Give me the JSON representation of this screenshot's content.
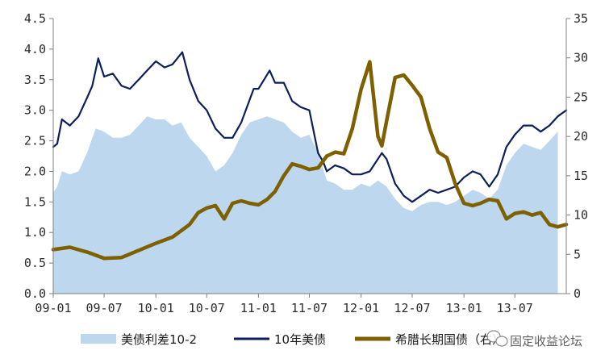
{
  "chart_data": {
    "type": "line",
    "title": "",
    "x_ticks": [
      "09-01",
      "09-07",
      "10-01",
      "10-07",
      "11-01",
      "11-07",
      "12-01",
      "12-07",
      "13-01",
      "13-07"
    ],
    "y_left": {
      "min": 0,
      "max": 4.5,
      "ticks": [
        "0.0",
        "0.5",
        "1.0",
        "1.5",
        "2.0",
        "2.5",
        "3.0",
        "3.5",
        "4.0",
        "4.5"
      ]
    },
    "y_right": {
      "min": 0,
      "max": 35,
      "ticks": [
        "0",
        "5",
        "10",
        "15",
        "20",
        "25",
        "30",
        "35"
      ]
    },
    "legend_position": "bottom",
    "grid": false,
    "series": [
      {
        "name": "美债利差10-2",
        "type": "area",
        "axis": "left",
        "color": "#bdd7ee",
        "x": [
          "2009-01-01",
          "2009-01-15",
          "2009-02-01",
          "2009-03-01",
          "2009-04-01",
          "2009-05-01",
          "2009-06-01",
          "2009-07-01",
          "2009-08-01",
          "2009-09-01",
          "2009-10-01",
          "2009-11-01",
          "2009-12-01",
          "2010-01-01",
          "2010-02-01",
          "2010-03-01",
          "2010-04-01",
          "2010-05-01",
          "2010-06-01",
          "2010-07-01",
          "2010-08-01",
          "2010-09-01",
          "2010-10-01",
          "2010-11-01",
          "2010-12-01",
          "2011-01-01",
          "2011-02-01",
          "2011-03-01",
          "2011-04-01",
          "2011-05-01",
          "2011-06-01",
          "2011-07-01",
          "2011-08-01",
          "2011-09-01",
          "2011-10-01",
          "2011-11-01",
          "2011-12-01",
          "2012-01-01",
          "2012-02-01",
          "2012-03-01",
          "2012-04-01",
          "2012-05-01",
          "2012-06-01",
          "2012-07-01",
          "2012-08-01",
          "2012-09-01",
          "2012-10-01",
          "2012-11-01",
          "2012-12-01",
          "2013-01-01",
          "2013-02-01",
          "2013-03-01",
          "2013-04-01",
          "2013-05-01",
          "2013-06-01",
          "2013-07-01",
          "2013-08-01",
          "2013-09-01",
          "2013-10-01",
          "2013-11-01",
          "2013-12-01"
        ],
        "values": [
          1.65,
          1.75,
          2.0,
          1.95,
          2.0,
          2.3,
          2.7,
          2.65,
          2.55,
          2.55,
          2.6,
          2.75,
          2.9,
          2.85,
          2.85,
          2.75,
          2.8,
          2.55,
          2.4,
          2.25,
          2.0,
          2.1,
          2.3,
          2.6,
          2.8,
          2.85,
          2.9,
          2.85,
          2.8,
          2.65,
          2.55,
          2.6,
          2.3,
          1.85,
          1.8,
          1.7,
          1.7,
          1.8,
          1.75,
          1.85,
          1.75,
          1.55,
          1.4,
          1.35,
          1.45,
          1.5,
          1.5,
          1.45,
          1.5,
          1.6,
          1.7,
          1.65,
          1.55,
          1.7,
          2.1,
          2.3,
          2.45,
          2.4,
          2.35,
          2.5,
          2.65
        ]
      },
      {
        "name": "10年美债",
        "type": "line",
        "axis": "left",
        "color": "#0c1f5c",
        "x": [
          "2009-01-01",
          "2009-01-15",
          "2009-02-01",
          "2009-03-01",
          "2009-04-01",
          "2009-05-01",
          "2009-05-20",
          "2009-06-10",
          "2009-07-01",
          "2009-08-01",
          "2009-09-01",
          "2009-10-01",
          "2009-11-01",
          "2009-12-01",
          "2010-01-01",
          "2010-02-01",
          "2010-03-01",
          "2010-04-05",
          "2010-05-01",
          "2010-06-01",
          "2010-07-01",
          "2010-08-01",
          "2010-09-01",
          "2010-10-01",
          "2010-11-01",
          "2010-12-15",
          "2011-01-01",
          "2011-02-10",
          "2011-03-01",
          "2011-04-01",
          "2011-05-01",
          "2011-06-01",
          "2011-07-01",
          "2011-08-01",
          "2011-08-20",
          "2011-09-01",
          "2011-10-01",
          "2011-11-01",
          "2011-12-01",
          "2012-01-01",
          "2012-02-01",
          "2012-03-15",
          "2012-04-01",
          "2012-05-01",
          "2012-06-01",
          "2012-07-01",
          "2012-08-01",
          "2012-09-01",
          "2012-10-01",
          "2012-11-01",
          "2012-12-01",
          "2013-01-01",
          "2013-02-01",
          "2013-03-01",
          "2013-04-01",
          "2013-05-01",
          "2013-06-01",
          "2013-07-01",
          "2013-08-01",
          "2013-09-01",
          "2013-10-01",
          "2013-11-01",
          "2013-12-01",
          "2013-12-31"
        ],
        "values": [
          2.4,
          2.45,
          2.85,
          2.75,
          2.9,
          3.2,
          3.4,
          3.85,
          3.55,
          3.6,
          3.4,
          3.35,
          3.5,
          3.65,
          3.8,
          3.7,
          3.75,
          3.95,
          3.5,
          3.15,
          3.0,
          2.7,
          2.55,
          2.55,
          2.8,
          3.35,
          3.35,
          3.65,
          3.45,
          3.45,
          3.15,
          3.05,
          3.0,
          2.3,
          2.15,
          2.0,
          2.1,
          2.05,
          1.95,
          1.95,
          2.0,
          2.3,
          2.2,
          1.8,
          1.6,
          1.5,
          1.6,
          1.7,
          1.65,
          1.7,
          1.75,
          1.9,
          2.0,
          1.95,
          1.75,
          1.95,
          2.4,
          2.6,
          2.75,
          2.75,
          2.65,
          2.75,
          2.9,
          3.0
        ]
      },
      {
        "name": "希腊长期国债（右）",
        "type": "line",
        "axis": "right",
        "color": "#7f6000",
        "x": [
          "2009-01-01",
          "2009-03-01",
          "2009-05-01",
          "2009-07-01",
          "2009-09-01",
          "2009-11-01",
          "2010-01-01",
          "2010-03-01",
          "2010-04-01",
          "2010-05-01",
          "2010-06-01",
          "2010-07-01",
          "2010-08-01",
          "2010-09-01",
          "2010-10-01",
          "2010-11-01",
          "2010-12-01",
          "2011-01-01",
          "2011-02-01",
          "2011-03-01",
          "2011-04-01",
          "2011-05-01",
          "2011-06-01",
          "2011-07-01",
          "2011-08-01",
          "2011-09-01",
          "2011-10-01",
          "2011-11-01",
          "2011-12-01",
          "2012-01-01",
          "2012-02-01",
          "2012-03-01",
          "2012-03-15",
          "2012-04-01",
          "2012-05-01",
          "2012-06-01",
          "2012-07-01",
          "2012-08-01",
          "2012-09-01",
          "2012-10-01",
          "2012-11-01",
          "2012-12-01",
          "2013-01-01",
          "2013-02-01",
          "2013-03-01",
          "2013-04-01",
          "2013-05-01",
          "2013-06-01",
          "2013-07-01",
          "2013-08-01",
          "2013-09-01",
          "2013-10-01",
          "2013-11-01",
          "2013-12-01",
          "2013-12-31"
        ],
        "values": [
          5.6,
          5.9,
          5.3,
          4.5,
          4.6,
          5.5,
          6.4,
          7.2,
          8.0,
          8.8,
          10.3,
          10.9,
          11.2,
          9.5,
          11.5,
          11.8,
          11.5,
          11.3,
          12.0,
          13.0,
          15.0,
          16.5,
          16.2,
          15.8,
          16.0,
          17.5,
          18.0,
          17.8,
          21.0,
          26.0,
          29.5,
          20.0,
          18.8,
          22.0,
          27.5,
          27.8,
          26.5,
          25.0,
          21.0,
          18.0,
          17.3,
          14.0,
          11.5,
          11.2,
          11.5,
          12.0,
          11.8,
          9.5,
          10.2,
          10.4,
          10.0,
          10.3,
          8.8,
          8.5,
          8.8
        ]
      }
    ]
  },
  "watermark": {
    "text": "固定收益论坛",
    "icon": "wechat-icon"
  }
}
